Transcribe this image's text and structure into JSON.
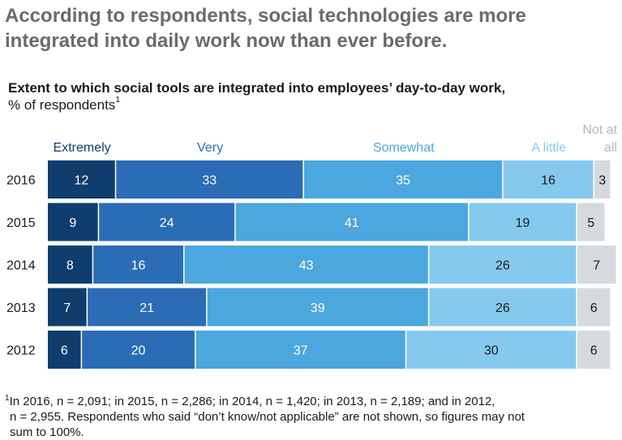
{
  "headline": {
    "line1": "According to respondents, social technologies are more",
    "line2": "integrated into daily work now than ever before."
  },
  "subtitle": "Extent to which social tools are integrated into employees’ day-to-day work,",
  "unit": "% of respondents",
  "unit_note_marker": "1",
  "footnote": {
    "marker": "1",
    "line1": "In 2016, n = 2,091; in 2015, n = 2,286; in 2014, n = 1,420; in 2013, n = 2,189; and in 2012,",
    "line2": "n = 2,955. Respondents who said “don’t know/not applicable” are not shown, so figures may not",
    "line3": "sum to 100%."
  },
  "chart_data": {
    "type": "bar",
    "orientation": "horizontal",
    "stacked": true,
    "categories": [
      "2016",
      "2015",
      "2014",
      "2013",
      "2012"
    ],
    "series": [
      {
        "name": "Extremely",
        "values": [
          12,
          9,
          8,
          7,
          6
        ],
        "color": "#0f3d6e",
        "label_color": "#ffffff"
      },
      {
        "name": "Very",
        "values": [
          33,
          24,
          16,
          21,
          20
        ],
        "color": "#2b6cb6",
        "label_color": "#ffffff"
      },
      {
        "name": "Somewhat",
        "values": [
          35,
          41,
          43,
          39,
          37
        ],
        "color": "#4ba7dd",
        "label_color": "#ffffff"
      },
      {
        "name": "A little",
        "values": [
          16,
          19,
          26,
          26,
          30
        ],
        "color": "#86c9ef",
        "label_color": "#1a1a1a"
      },
      {
        "name": "Not at all",
        "values": [
          3,
          5,
          7,
          6,
          6
        ],
        "color": "#d6dade",
        "label_color": "#1a1a1a"
      }
    ],
    "legend_header_colors": [
      "#0f3d6e",
      "#2b6cb6",
      "#4ba7dd",
      "#86c9ef",
      "#b4b9be"
    ],
    "legend": "top",
    "grid": false
  }
}
